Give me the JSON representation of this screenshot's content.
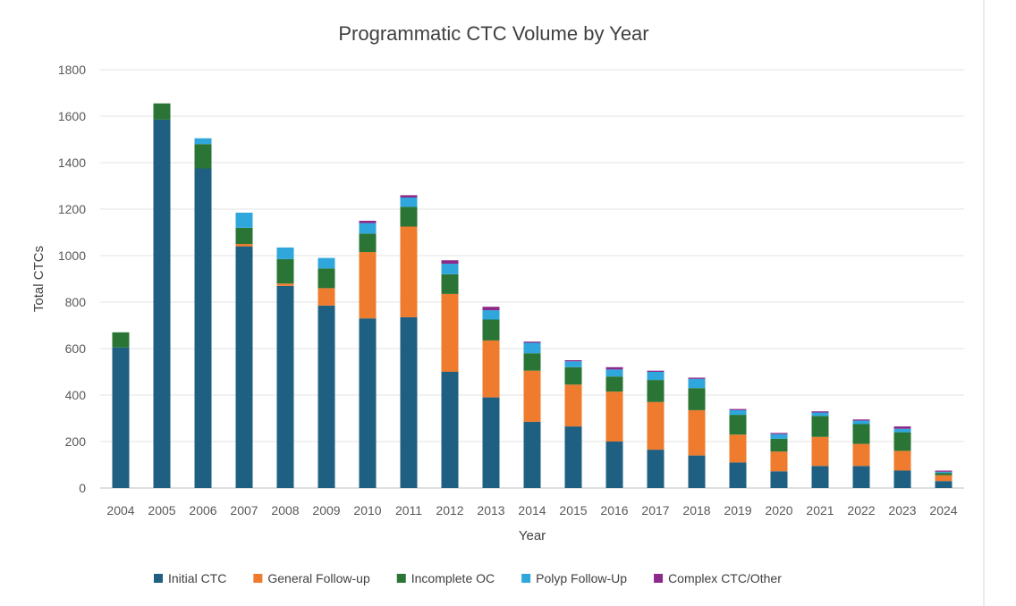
{
  "chart_data": {
    "type": "bar",
    "stacked": true,
    "title": "Programmatic CTC Volume by Year",
    "xlabel": "Year",
    "ylabel": "Total CTCs",
    "ylim": [
      0,
      1800
    ],
    "yticks": [
      0,
      200,
      400,
      600,
      800,
      1000,
      1200,
      1400,
      1600,
      1800
    ],
    "grid": true,
    "legend_position": "bottom",
    "categories": [
      "2004",
      "2005",
      "2006",
      "2007",
      "2008",
      "2009",
      "2010",
      "2011",
      "2012",
      "2013",
      "2014",
      "2015",
      "2016",
      "2017",
      "2018",
      "2019",
      "2020",
      "2021",
      "2022",
      "2023",
      "2024"
    ],
    "series": [
      {
        "name": "Initial CTC",
        "color": "#1f5f82",
        "values": [
          605,
          1585,
          1375,
          1040,
          870,
          785,
          730,
          735,
          500,
          390,
          285,
          265,
          200,
          165,
          140,
          110,
          72,
          95,
          95,
          75,
          30
        ]
      },
      {
        "name": "General Follow-up",
        "color": "#ef7b2f",
        "values": [
          0,
          0,
          0,
          10,
          10,
          75,
          285,
          390,
          335,
          245,
          220,
          180,
          215,
          205,
          195,
          120,
          85,
          125,
          95,
          85,
          25
        ]
      },
      {
        "name": "Incomplete OC",
        "color": "#2a7535",
        "values": [
          65,
          70,
          105,
          70,
          105,
          85,
          80,
          85,
          85,
          90,
          75,
          75,
          65,
          95,
          95,
          85,
          55,
          90,
          85,
          80,
          10
        ]
      },
      {
        "name": "Polyp Follow-Up",
        "color": "#2fa7dd",
        "values": [
          0,
          0,
          25,
          65,
          50,
          45,
          45,
          40,
          45,
          40,
          45,
          25,
          30,
          35,
          40,
          20,
          20,
          15,
          15,
          15,
          5
        ]
      },
      {
        "name": "Complex CTC/Other",
        "color": "#8b2a8b",
        "values": [
          0,
          0,
          0,
          0,
          0,
          0,
          10,
          10,
          15,
          15,
          5,
          5,
          10,
          5,
          5,
          5,
          5,
          5,
          5,
          10,
          5
        ]
      }
    ]
  }
}
